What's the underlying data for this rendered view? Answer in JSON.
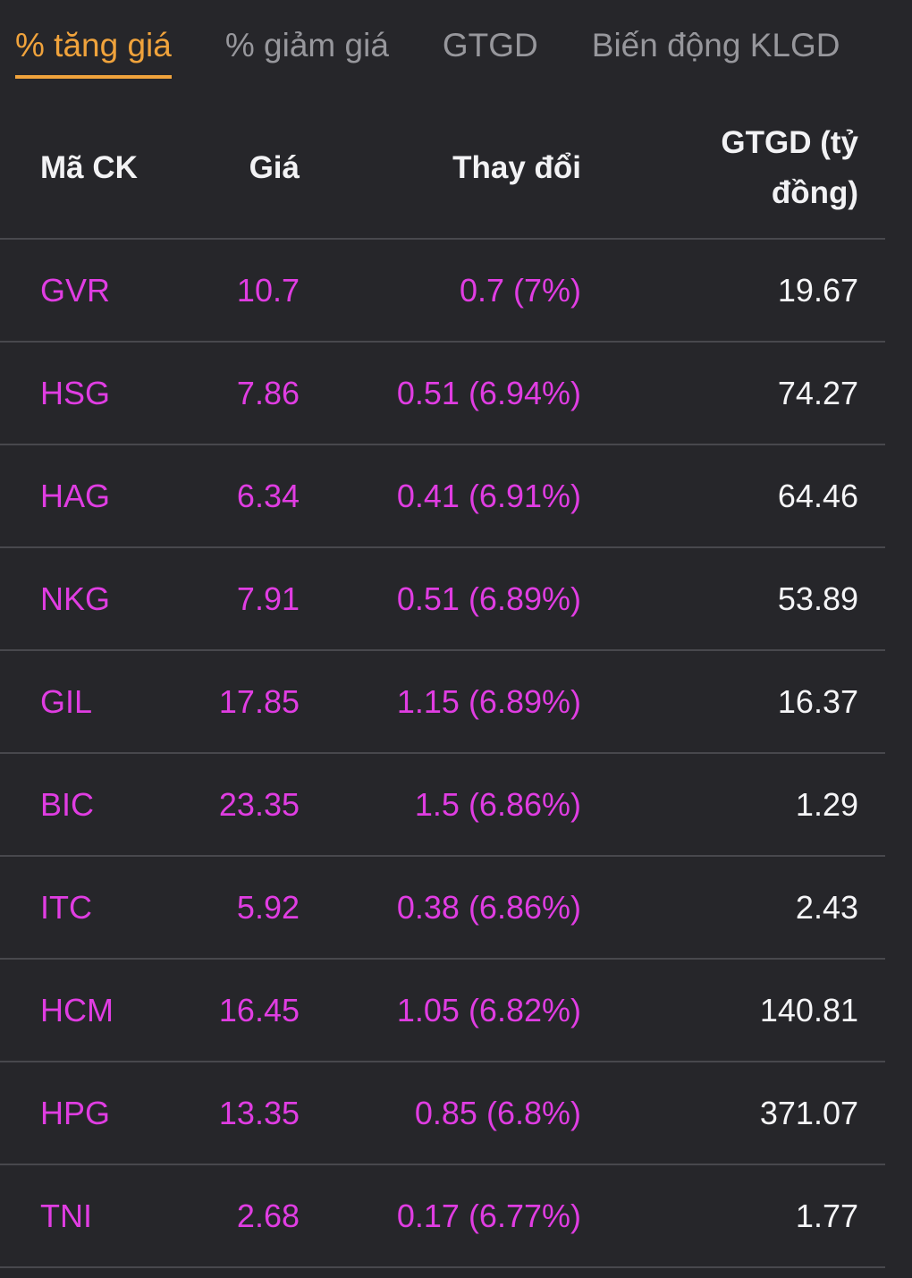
{
  "tabs": [
    {
      "label": "% tăng giá",
      "active": true
    },
    {
      "label": "% giảm giá",
      "active": false
    },
    {
      "label": "GTGD",
      "active": false
    },
    {
      "label": "Biến động KLGD",
      "active": false
    }
  ],
  "table": {
    "columns": [
      "Mã CK",
      "Giá",
      "Thay đổi",
      "GTGD (tỷ đồng)"
    ],
    "rows": [
      {
        "symbol": "GVR",
        "price": "10.7",
        "change": "0.7 (7%)",
        "gtgd": "19.67"
      },
      {
        "symbol": "HSG",
        "price": "7.86",
        "change": "0.51 (6.94%)",
        "gtgd": "74.27"
      },
      {
        "symbol": "HAG",
        "price": "6.34",
        "change": "0.41 (6.91%)",
        "gtgd": "64.46"
      },
      {
        "symbol": "NKG",
        "price": "7.91",
        "change": "0.51 (6.89%)",
        "gtgd": "53.89"
      },
      {
        "symbol": "GIL",
        "price": "17.85",
        "change": "1.15 (6.89%)",
        "gtgd": "16.37"
      },
      {
        "symbol": "BIC",
        "price": "23.35",
        "change": "1.5 (6.86%)",
        "gtgd": "1.29"
      },
      {
        "symbol": "ITC",
        "price": "5.92",
        "change": "0.38 (6.86%)",
        "gtgd": "2.43"
      },
      {
        "symbol": "HCM",
        "price": "16.45",
        "change": "1.05 (6.82%)",
        "gtgd": "140.81"
      },
      {
        "symbol": "HPG",
        "price": "13.35",
        "change": "0.85 (6.8%)",
        "gtgd": "371.07"
      },
      {
        "symbol": "TNI",
        "price": "2.68",
        "change": "0.17 (6.77%)",
        "gtgd": "1.77"
      }
    ]
  },
  "colors": {
    "background": "#26262a",
    "divider": "#48484d",
    "tab_inactive": "#97979c",
    "tab_active_accent": "#f0a33c",
    "ceiling_price_magenta": "#e03de2",
    "value_white": "#f5f5f7"
  }
}
